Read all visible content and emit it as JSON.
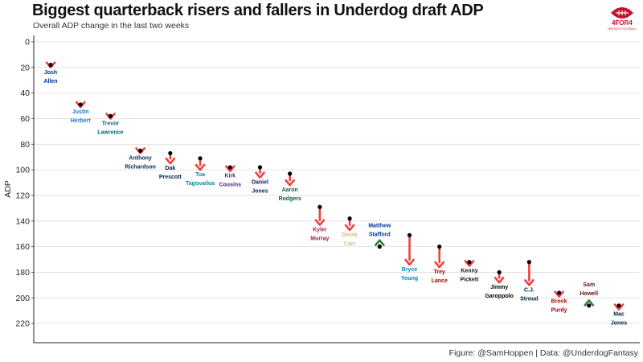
{
  "header": {
    "title": "Biggest quarterback risers and fallers in Underdog draft ADP",
    "subtitle": "Overall ADP change in the last two weeks"
  },
  "logo": {
    "brand": "4FOR4",
    "tagline": "FANTASY FOOTBALL",
    "color": "#c8102e"
  },
  "caption": "Figure: @SamHoppen | Data: @UnderdogFantasy",
  "colors": {
    "faller_arrow": "#f04040",
    "riser_arrow": "#2e7d32",
    "point": "#000000",
    "grid": "#dddddd"
  },
  "chart_data": {
    "type": "scatter",
    "ylabel": "ADP",
    "y_reversed": true,
    "ylim": [
      -5,
      235
    ],
    "yticks": [
      0,
      20,
      40,
      60,
      80,
      100,
      120,
      140,
      160,
      180,
      200,
      220
    ],
    "players": [
      {
        "name": "Josh Allen",
        "line1": "Josh",
        "line2": "Allen",
        "start": 18,
        "end": 20,
        "color": "#00338d"
      },
      {
        "name": "Justin Herbert",
        "line1": "Justin",
        "line2": "Herbert",
        "start": 49,
        "end": 51,
        "color": "#1f78c8"
      },
      {
        "name": "Trevor Lawrence",
        "line1": "Trevor",
        "line2": "Lawrence",
        "start": 58,
        "end": 60,
        "color": "#006778"
      },
      {
        "name": "Anthony Richardson",
        "line1": "Anthony",
        "line2": "Richardson",
        "start": 85,
        "end": 87,
        "color": "#002c5f"
      },
      {
        "name": "Dak Prescott",
        "line1": "Dak",
        "line2": "Prescott",
        "start": 87,
        "end": 95,
        "color": "#041e42"
      },
      {
        "name": "Tua Tagovailoa",
        "line1": "Tua",
        "line2": "Tagovailoa",
        "start": 91,
        "end": 100,
        "color": "#008e97"
      },
      {
        "name": "Kirk Cousins",
        "line1": "Kirk",
        "line2": "Cousins",
        "start": 98,
        "end": 101,
        "color": "#4f2683"
      },
      {
        "name": "Daniel Jones",
        "line1": "Daniel",
        "line2": "Jones",
        "start": 98,
        "end": 106,
        "color": "#0b2265"
      },
      {
        "name": "Aaron Rodgers",
        "line1": "Aaron",
        "line2": "Rodgers",
        "start": 103,
        "end": 112,
        "color": "#125740"
      },
      {
        "name": "Kyler Murray",
        "line1": "Kyler",
        "line2": "Murray",
        "start": 129,
        "end": 143,
        "color": "#97233f"
      },
      {
        "name": "Derek Carr",
        "line1": "Derek",
        "line2": "Carr",
        "start": 138,
        "end": 147,
        "color": "#d3bc8d"
      },
      {
        "name": "Matthew Stafford",
        "line1": "Matthew",
        "line2": "Stafford",
        "start": 160,
        "end": 155,
        "color": "#003594"
      },
      {
        "name": "Bryce Young",
        "line1": "Bryce",
        "line2": "Young",
        "start": 151,
        "end": 174,
        "color": "#0085ca"
      },
      {
        "name": "Trey Lance",
        "line1": "Trey",
        "line2": "Lance",
        "start": 160,
        "end": 176,
        "color": "#aa0000"
      },
      {
        "name": "Kenny Pickett",
        "line1": "Kenny",
        "line2": "Pickett",
        "start": 172,
        "end": 175,
        "color": "#101820"
      },
      {
        "name": "Jimmy Garoppolo",
        "line1": "Jimmy",
        "line2": "Garoppolo",
        "start": 180,
        "end": 188,
        "color": "#000000"
      },
      {
        "name": "C.J. Stroud",
        "line1": "C.J.",
        "line2": "Stroud",
        "start": 172,
        "end": 190,
        "color": "#03202f"
      },
      {
        "name": "Brock Purdy",
        "line1": "Brock",
        "line2": "Purdy",
        "start": 196,
        "end": 199,
        "color": "#aa0000"
      },
      {
        "name": "Sam Howell",
        "line1": "Sam",
        "line2": "Howell",
        "start": 206,
        "end": 202,
        "color": "#5a1414"
      },
      {
        "name": "Mac Jones",
        "line1": "Mac",
        "line2": "Jones",
        "start": 206,
        "end": 209,
        "color": "#002244"
      }
    ]
  }
}
